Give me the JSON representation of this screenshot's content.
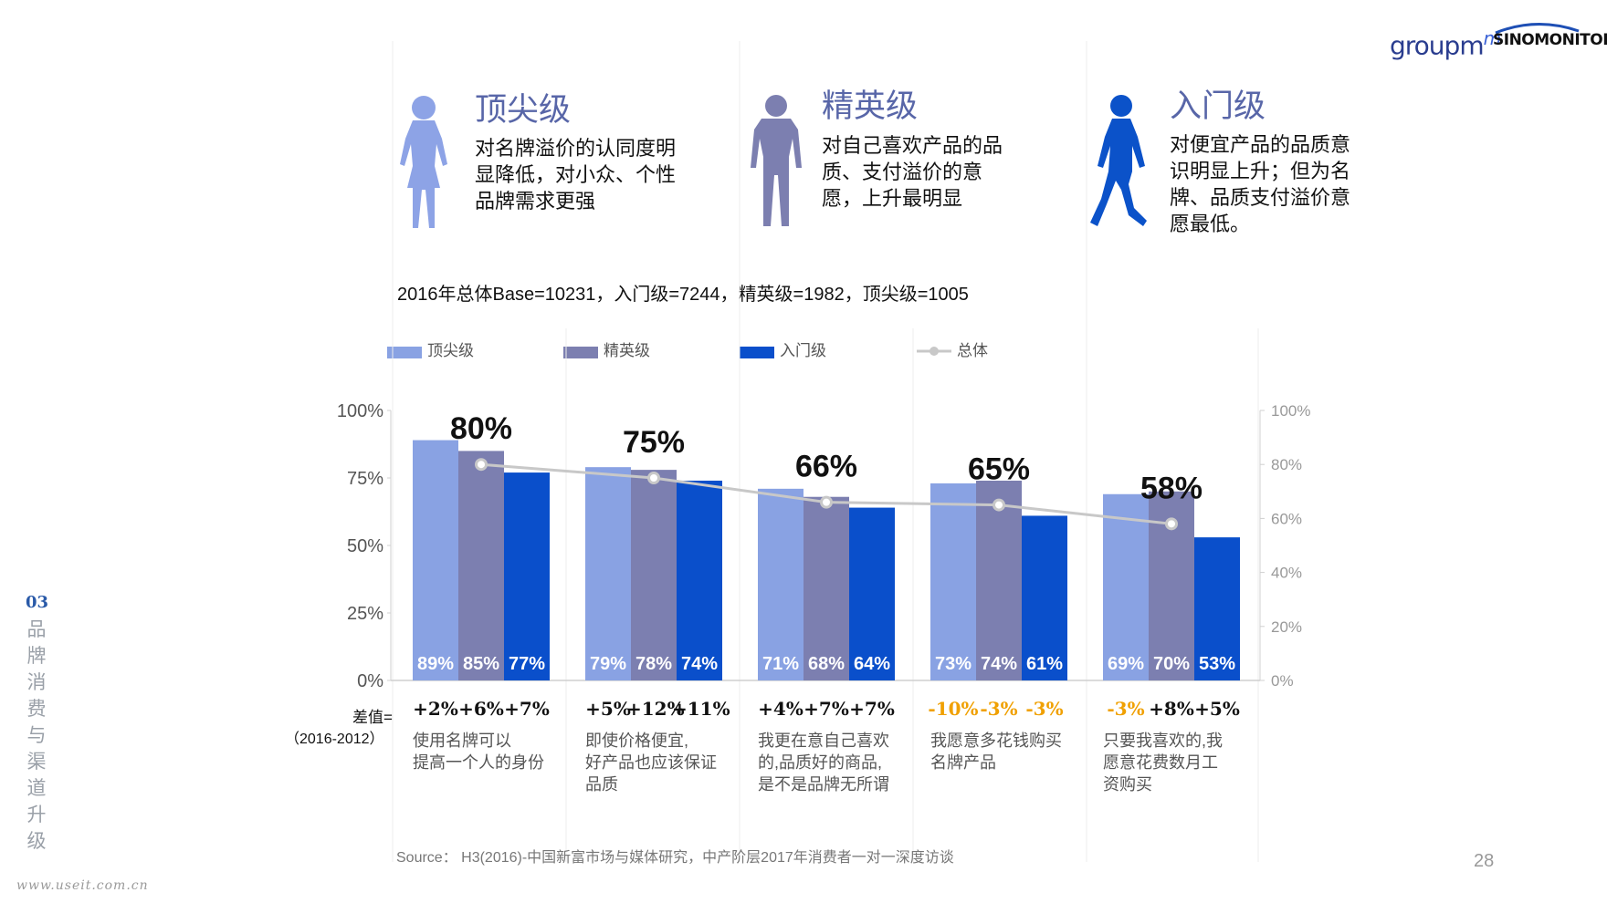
{
  "logos": {
    "groupm": "groupm",
    "groupm_suffix": "m",
    "sinomonitor": "SINOMONITOR"
  },
  "personas": [
    {
      "title": "顶尖级",
      "desc": [
        "对名牌溢价的认同度明",
        "显降低，对小众、个性",
        "品牌需求更强"
      ],
      "color": "#8da3e6"
    },
    {
      "title": "精英级",
      "desc": [
        "对自己喜欢产品的品",
        "质、支付溢价的意",
        "愿，上升最明显"
      ],
      "color": "#7c7fb0"
    },
    {
      "title": "入门级",
      "desc": [
        "对便宜产品的品质意",
        "识明显上升；但为名",
        "牌、品质支付溢价意",
        "愿最低。"
      ],
      "color": "#0b52c9"
    }
  ],
  "base_text": "2016年总体Base=10231，入门级=7244，精英级=1982，顶尖级=1005",
  "legend": [
    {
      "label": "顶尖级",
      "color": "#89a2e3"
    },
    {
      "label": "精英级",
      "color": "#7c7fb0"
    },
    {
      "label": "入门级",
      "color": "#0a4fcb"
    },
    {
      "label": "总体",
      "color": "#c8c8c8"
    }
  ],
  "chart_data": {
    "type": "bar",
    "series": [
      {
        "name": "顶尖级",
        "values": [
          89,
          79,
          71,
          73,
          69
        ]
      },
      {
        "name": "精英级",
        "values": [
          85,
          78,
          68,
          74,
          70
        ]
      },
      {
        "name": "入门级",
        "values": [
          77,
          74,
          64,
          61,
          53
        ]
      }
    ],
    "overlay_line": {
      "name": "总体",
      "values": [
        80,
        75,
        66,
        65,
        58
      ],
      "axis": "right"
    },
    "left_axis": {
      "ticks": [
        "0%",
        "25%",
        "50%",
        "75%",
        "100%"
      ],
      "ylim": [
        0,
        100
      ]
    },
    "right_axis": {
      "ticks": [
        "0%",
        "20%",
        "40%",
        "60%",
        "80%",
        "100%"
      ],
      "ylim": [
        0,
        100
      ]
    },
    "categories": [
      [
        "使用名牌可以",
        "提高一个人的身份"
      ],
      [
        "即使价格便宜,",
        "好产品也应该保证",
        "品质"
      ],
      [
        "我更在意自己喜欢",
        "的,品质好的商品,",
        "是不是品牌无所谓"
      ],
      [
        "我愿意多花钱购买",
        "名牌产品"
      ],
      [
        "只要我喜欢的,我",
        "愿意花费数月工",
        "资购买"
      ]
    ],
    "total_labels": [
      "80%",
      "75%",
      "66%",
      "65%",
      "58%"
    ],
    "diff": [
      [
        "+2%",
        "+6%",
        "+7%"
      ],
      [
        "+5%",
        "+12%",
        "+11%"
      ],
      [
        "+4%",
        "+7%",
        "+7%"
      ],
      [
        "-10%",
        "-3%",
        "-3%"
      ],
      [
        "-3%",
        "+8%",
        "+5%"
      ]
    ],
    "diff_label": "差值=",
    "diff_period": "（2016-2012）",
    "positive_color": "#111111",
    "negative_color": "#f0a000"
  },
  "side": {
    "number": "03",
    "chars": [
      "品",
      "牌",
      "消",
      "费",
      "与",
      "渠",
      "道",
      "升",
      "级"
    ]
  },
  "source": "Source： H3(2016)-中国新富市场与媒体研究，中产阶层2017年消费者一对一深度访谈",
  "page_number": "28",
  "watermark": "www.useit.com.cn"
}
